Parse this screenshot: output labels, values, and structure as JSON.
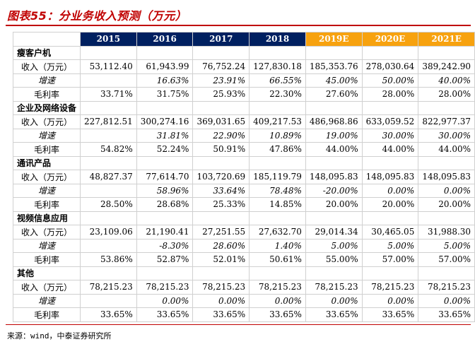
{
  "title": "图表55：分业务收入预测（万元）",
  "header": {
    "label": "分业务收入预测",
    "years": [
      "2015",
      "2016",
      "2017",
      "2018",
      "2019E",
      "2020E",
      "2021E"
    ]
  },
  "row_labels": {
    "revenue": "收入（万元）",
    "growth": "增速",
    "margin": "毛利率"
  },
  "sections": [
    {
      "name": "瘦客户机",
      "revenue": [
        "53,112.40",
        "61,943.99",
        "76,752.24",
        "127,830.18",
        "185,353.76",
        "278,030.64",
        "389,242.90"
      ],
      "growth": [
        "",
        "16.63%",
        "23.91%",
        "66.55%",
        "45.00%",
        "50.00%",
        "40.00%"
      ],
      "margin": [
        "33.71%",
        "31.75%",
        "25.93%",
        "22.30%",
        "27.60%",
        "28.00%",
        "28.00%"
      ]
    },
    {
      "name": "企业及网络设备",
      "revenue": [
        "227,812.51",
        "300,274.16",
        "369,031.65",
        "409,217.53",
        "486,968.86",
        "633,059.52",
        "822,977.37"
      ],
      "growth": [
        "",
        "31.81%",
        "22.90%",
        "10.89%",
        "19.00%",
        "30.00%",
        "30.00%"
      ],
      "margin": [
        "54.82%",
        "52.24%",
        "50.91%",
        "47.86%",
        "44.00%",
        "44.00%",
        "44.00%"
      ]
    },
    {
      "name": "通讯产品",
      "revenue": [
        "48,827.37",
        "77,614.70",
        "103,720.69",
        "185,119.79",
        "148,095.83",
        "148,095.83",
        "148,095.83"
      ],
      "growth": [
        "",
        "58.96%",
        "33.64%",
        "78.48%",
        "-20.00%",
        "0.00%",
        "0.00%"
      ],
      "margin": [
        "28.50%",
        "28.68%",
        "25.33%",
        "14.85%",
        "20.00%",
        "20.00%",
        "20.00%"
      ]
    },
    {
      "name": "视频信息应用",
      "revenue": [
        "23,109.06",
        "21,190.41",
        "27,251.55",
        "27,632.70",
        "29,014.34",
        "30,465.05",
        "31,988.30"
      ],
      "growth": [
        "",
        "-8.30%",
        "28.60%",
        "1.40%",
        "5.00%",
        "5.00%",
        "5.00%"
      ],
      "margin": [
        "53.86%",
        "52.87%",
        "52.01%",
        "50.61%",
        "55.00%",
        "57.00%",
        "57.00%"
      ]
    },
    {
      "name": "其他",
      "revenue": [
        "78,215.23",
        "78,215.23",
        "78,215.23",
        "78,215.23",
        "78,215.23",
        "78,215.23",
        "78,215.23"
      ],
      "growth": [
        "",
        "0.00%",
        "0.00%",
        "0.00%",
        "0.00%",
        "0.00%",
        "0.00%"
      ],
      "margin": [
        "33.65%",
        "33.65%",
        "33.65%",
        "33.65%",
        "33.65%",
        "33.65%",
        "33.65%"
      ]
    }
  ],
  "source": "来源：wind，中泰证券研究所"
}
